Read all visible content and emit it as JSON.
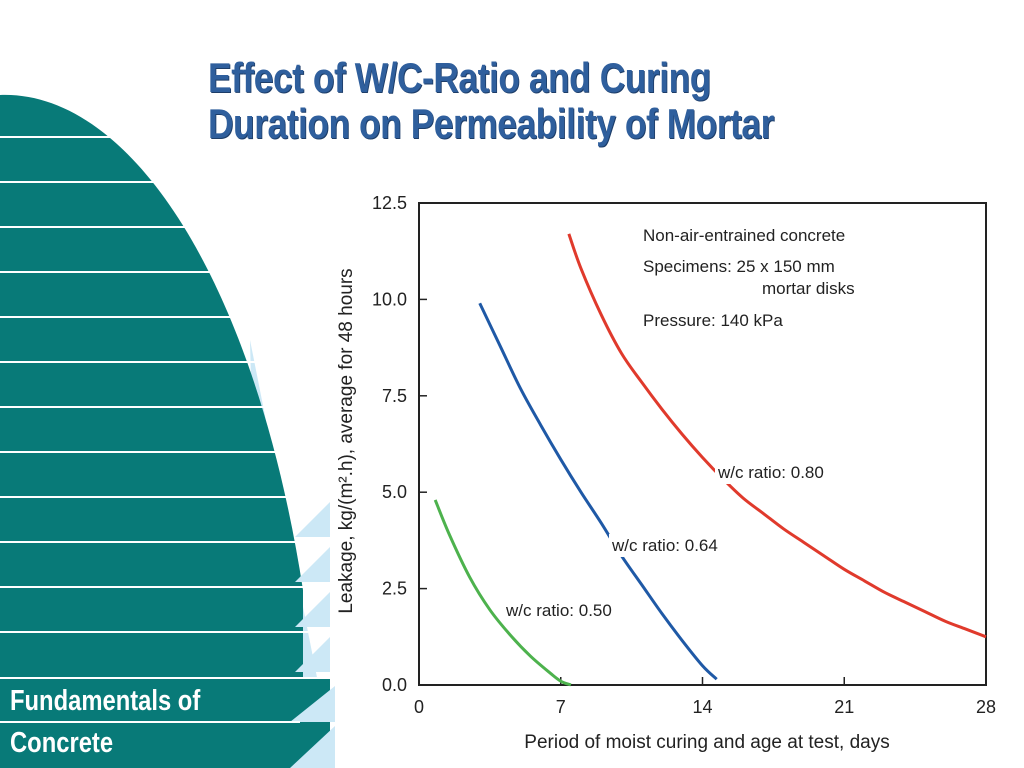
{
  "slide": {
    "title_line1": "Effect of W/C-Ratio and Curing",
    "title_line2": "Duration on Permeability of Mortar",
    "footer_line1": "Fundamentals of",
    "footer_line2": "Concrete",
    "colors": {
      "title": "#2f5f9d",
      "teal": "#087a78",
      "sky": "#cce8f6"
    }
  },
  "chart_data": {
    "type": "line",
    "title": "",
    "xlabel": "Period of moist curing and age at test, days",
    "ylabel": "Leakage, kg/(m².h), average for 48 hours",
    "xlim": [
      0,
      28
    ],
    "ylim": [
      0,
      12.5
    ],
    "xticks": [
      0,
      7,
      14,
      21,
      28
    ],
    "xtick_labels": [
      "0",
      "7",
      "14",
      "21",
      "28"
    ],
    "yticks": [
      0,
      2.5,
      5.0,
      7.5,
      10.0,
      12.5
    ],
    "ytick_labels": [
      "0.0",
      "2.5",
      "5.0",
      "7.5",
      "10.0",
      "12.5"
    ],
    "grid": false,
    "annotations": [
      "Non-air-entrained concrete",
      "Specimens: 25 x 150 mm",
      "mortar disks",
      "Pressure: 140 kPa"
    ],
    "series": [
      {
        "name": "w/c ratio: 0.50",
        "color": "#4db24d",
        "x": [
          0.8,
          1.5,
          2.5,
          3.5,
          4.5,
          5.5,
          6.5,
          7.0,
          7.5
        ],
        "y": [
          4.8,
          3.9,
          2.8,
          1.95,
          1.3,
          0.75,
          0.3,
          0.1,
          0.0
        ]
      },
      {
        "name": "w/c ratio: 0.64",
        "color": "#1f59a6",
        "x": [
          3.0,
          4.0,
          5.0,
          6.0,
          7.0,
          8.0,
          9.0,
          10.0,
          11.0,
          12.0,
          13.0,
          14.0,
          14.7
        ],
        "y": [
          9.9,
          8.8,
          7.7,
          6.75,
          5.85,
          5.0,
          4.2,
          3.35,
          2.6,
          1.85,
          1.15,
          0.5,
          0.15
        ]
      },
      {
        "name": "w/c ratio: 0.80",
        "color": "#e03a2c",
        "x": [
          7.4,
          8.0,
          9.0,
          10.0,
          11.0,
          12.0,
          13.0,
          14.0,
          15.0,
          16.0,
          17.0,
          18.0,
          19.0,
          20.0,
          21.0,
          22.0,
          23.0,
          24.0,
          25.0,
          26.0,
          27.0,
          28.0
        ],
        "y": [
          11.7,
          10.8,
          9.6,
          8.6,
          7.85,
          7.15,
          6.5,
          5.9,
          5.35,
          4.85,
          4.45,
          4.05,
          3.7,
          3.35,
          3.0,
          2.7,
          2.4,
          2.15,
          1.9,
          1.65,
          1.45,
          1.25
        ]
      }
    ]
  }
}
